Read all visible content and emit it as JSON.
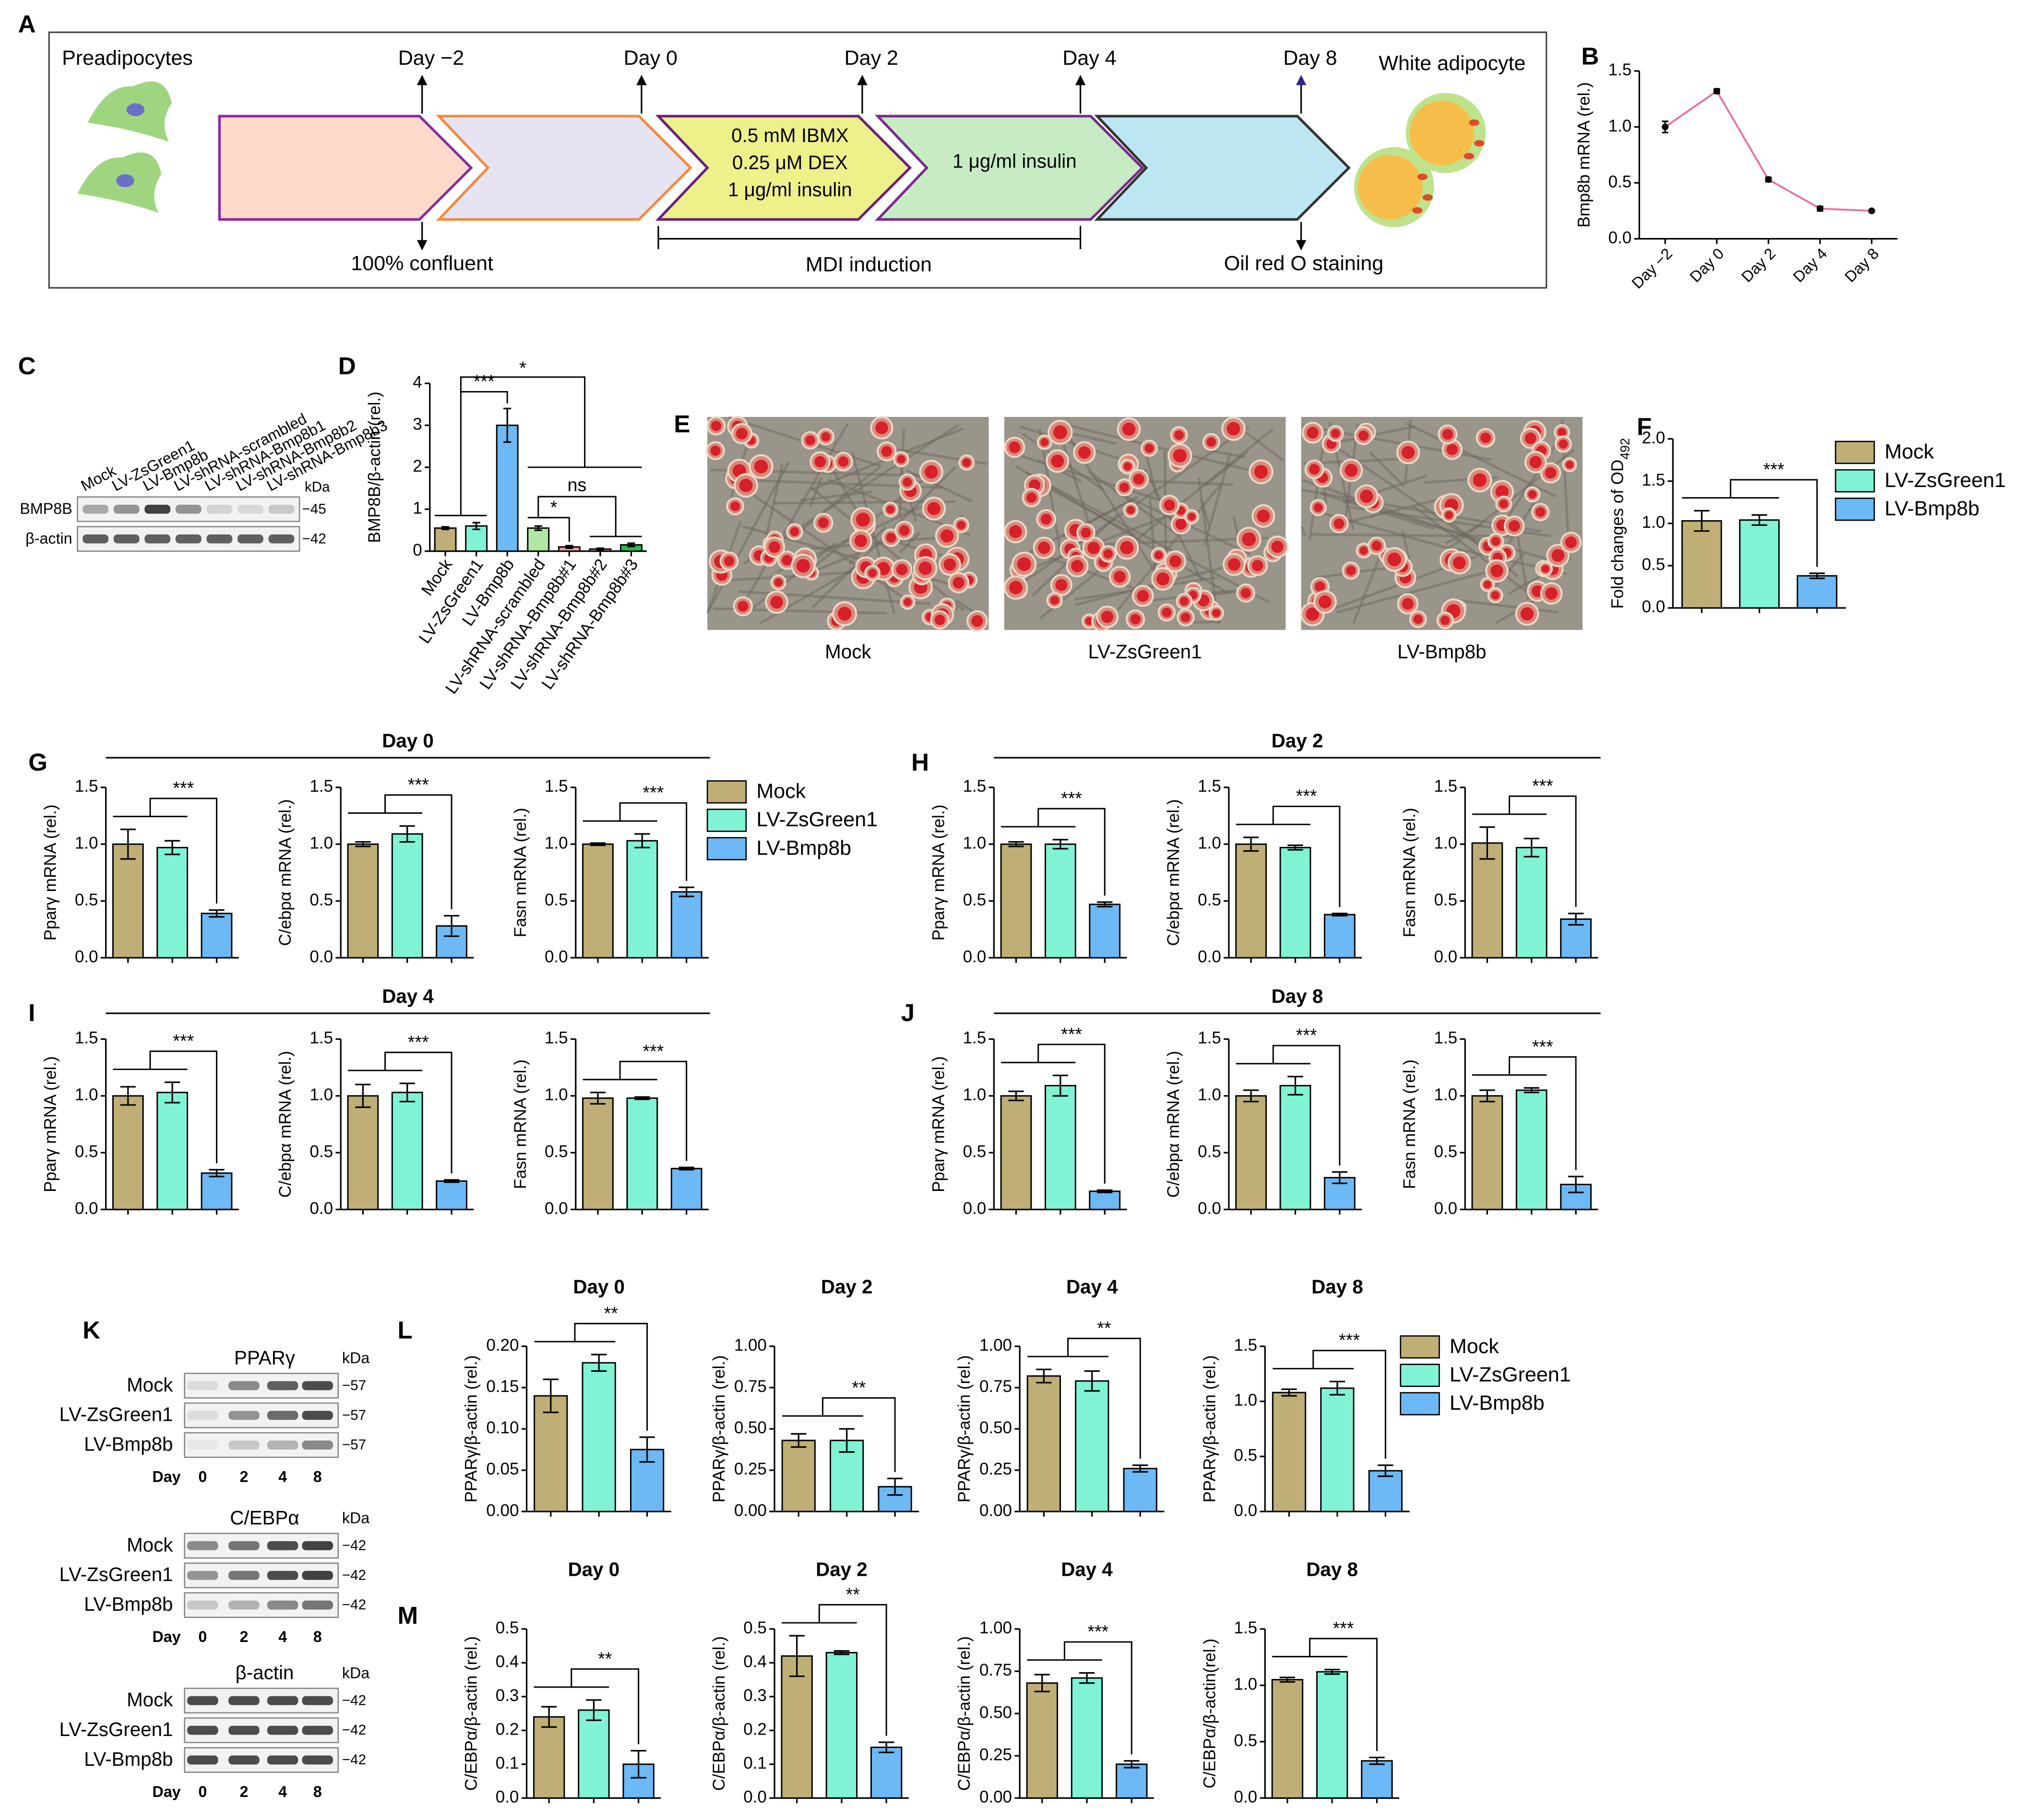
{
  "panel_labels": [
    "A",
    "B",
    "C",
    "D",
    "E",
    "F",
    "G",
    "H",
    "I",
    "J",
    "K",
    "L",
    "M"
  ],
  "groups": {
    "names": [
      "Mock",
      "LV-ZsGreen1",
      "LV-Bmp8b"
    ],
    "colors": [
      "#bfae76",
      "#80f3d5",
      "#6cb9f5"
    ]
  },
  "timeline": {
    "start": "Preadipocytes",
    "days": [
      "Day −2",
      "Day 0",
      "Day 2",
      "Day 4",
      "Day 8"
    ],
    "end": "White adipocyte",
    "below": [
      "100% confluent",
      "MDI induction",
      "Oil red O staining"
    ],
    "box3": [
      "0.5 mM IBMX",
      "0.25 μM DEX",
      "1 μg/ml insulin"
    ],
    "box4": "1 μg/ml insulin"
  },
  "blot_c": {
    "lanes": [
      "Mock",
      "LV-ZsGreen1",
      "LV-Bmp8b",
      "LV-shRNA-scrambled",
      "LV-shRNA-Bmp8b1",
      "LV-shRNA-Bmp8b2",
      "LV-shRNA-Bmp8b3"
    ],
    "rows": [
      "BMP8B",
      "β-actin"
    ],
    "kda": "kDa",
    "markers": [
      "−45",
      "−42"
    ]
  },
  "blot_k": {
    "blots": [
      {
        "title": "PPARγ",
        "marker": "−57"
      },
      {
        "title": "C/EBPα",
        "marker": "−42"
      },
      {
        "title": "β-actin",
        "marker": "−42"
      }
    ],
    "kda": "kDa",
    "day_label": "Day",
    "lanes": [
      "0",
      "2",
      "4",
      "8"
    ]
  },
  "section_titles": [
    "Day 0",
    "Day 2",
    "Day 4",
    "Day 8"
  ],
  "chart_data": [
    {
      "type": "line",
      "ylabel": "Bmp8b mRNA (rel.)",
      "categories": [
        "Day −2",
        "Day 0",
        "Day 2",
        "Day 4",
        "Day 8"
      ],
      "values": [
        1.0,
        1.32,
        0.53,
        0.27,
        0.25
      ],
      "errors": [
        0.05,
        0.02,
        0.02,
        0.02,
        0.01
      ],
      "color": "#f06a9a",
      "ylim": [
        0,
        1.5
      ],
      "yticks": [
        {
          "value": 0,
          "label": "0.0"
        },
        0.5,
        {
          "value": 1,
          "label": "1.0"
        },
        1.5
      ]
    },
    {
      "type": "bar",
      "ylabel": "BMP8B/β-actin (rel.)",
      "categories": [
        "Mock",
        "LV-ZsGreen1",
        "LV-Bmp8b",
        "LV-shRNA-scrambled",
        "LV-shRNA-Bmp8b#1",
        "LV-shRNA-Bmp8b#2",
        "LV-shRNA-Bmp8b#3"
      ],
      "values": [
        0.55,
        0.6,
        3.0,
        0.55,
        0.1,
        0.05,
        0.15
      ],
      "errors": [
        0.03,
        0.08,
        0.4,
        0.05,
        0.03,
        0.02,
        0.04
      ],
      "colors": [
        "#bfae76",
        "#80f3d5",
        "#6cb9f5",
        "#b1e7a5",
        "#f59e9e",
        "#f0a9c8",
        "#2fb84a"
      ],
      "ylim": [
        0,
        4
      ],
      "yticks": [
        0,
        1,
        2,
        3,
        4
      ],
      "annotations": [
        "***",
        "*",
        "ns",
        "*"
      ]
    },
    {
      "type": "bar",
      "ylabel": "Fold changes of OD",
      "ylabel_sub": "492",
      "values": [
        1.03,
        1.04,
        0.38
      ],
      "errors": [
        0.12,
        0.06,
        0.03
      ],
      "ylim": [
        0,
        2
      ],
      "yticks": [
        {
          "value": 0,
          "label": "0.0"
        },
        0.5,
        {
          "value": 1,
          "label": "1.0"
        },
        1.5,
        {
          "value": 2,
          "label": "2.0"
        }
      ],
      "annotation": "***"
    },
    {
      "type": "bar",
      "ylabel": "Pparγ mRNA (rel.)",
      "values": [
        1.0,
        0.97,
        0.39
      ],
      "errors": [
        0.13,
        0.06,
        0.03
      ],
      "ylim": [
        0,
        1.5
      ],
      "yticks": [
        {
          "value": 0,
          "label": "0.0"
        },
        0.5,
        {
          "value": 1,
          "label": "1.0"
        },
        1.5
      ],
      "annotation": "***"
    },
    {
      "type": "bar",
      "ylabel": "C/ebpα mRNA (rel.)",
      "values": [
        1.0,
        1.09,
        0.28
      ],
      "errors": [
        0.02,
        0.07,
        0.09
      ],
      "ylim": [
        0,
        1.5
      ],
      "yticks": [
        {
          "value": 0,
          "label": "0.0"
        },
        0.5,
        {
          "value": 1,
          "label": "1.0"
        },
        1.5
      ],
      "annotation": "***"
    },
    {
      "type": "bar",
      "ylabel": "Fasn mRNA (rel.)",
      "values": [
        1.0,
        1.03,
        0.58
      ],
      "errors": [
        0.01,
        0.06,
        0.04
      ],
      "ylim": [
        0,
        1.5
      ],
      "yticks": [
        {
          "value": 0,
          "label": "0.0"
        },
        0.5,
        {
          "value": 1,
          "label": "1.0"
        },
        1.5
      ],
      "annotation": "***"
    },
    {
      "type": "bar",
      "ylabel": "Pparγ mRNA (rel.)",
      "values": [
        1.0,
        1.0,
        0.47
      ],
      "errors": [
        0.02,
        0.04,
        0.02
      ],
      "ylim": [
        0,
        1.5
      ],
      "yticks": [
        {
          "value": 0,
          "label": "0.0"
        },
        0.5,
        {
          "value": 1,
          "label": "1.0"
        },
        1.5
      ],
      "annotation": "***"
    },
    {
      "type": "bar",
      "ylabel": "C/ebpα mRNA (rel.)",
      "values": [
        1.0,
        0.97,
        0.38
      ],
      "errors": [
        0.06,
        0.02,
        0.01
      ],
      "ylim": [
        0,
        1.5
      ],
      "yticks": [
        {
          "value": 0,
          "label": "0.0"
        },
        0.5,
        {
          "value": 1,
          "label": "1.0"
        },
        1.5
      ],
      "annotation": "***"
    },
    {
      "type": "bar",
      "ylabel": "Fasn mRNA (rel.)",
      "values": [
        1.01,
        0.97,
        0.34
      ],
      "errors": [
        0.14,
        0.08,
        0.05
      ],
      "ylim": [
        0,
        1.5
      ],
      "yticks": [
        {
          "value": 0,
          "label": "0.0"
        },
        0.5,
        {
          "value": 1,
          "label": "1.0"
        },
        1.5
      ],
      "annotation": "***"
    },
    {
      "type": "bar",
      "ylabel": "Pparγ mRNA (rel.)",
      "values": [
        1.0,
        1.03,
        0.32
      ],
      "errors": [
        0.08,
        0.09,
        0.03
      ],
      "ylim": [
        0,
        1.5
      ],
      "yticks": [
        {
          "value": 0,
          "label": "0.0"
        },
        0.5,
        {
          "value": 1,
          "label": "1.0"
        },
        1.5
      ],
      "annotation": "***"
    },
    {
      "type": "bar",
      "ylabel": "C/ebpα mRNA (rel.)",
      "values": [
        1.0,
        1.03,
        0.25
      ],
      "errors": [
        0.1,
        0.08,
        0.01
      ],
      "ylim": [
        0,
        1.5
      ],
      "yticks": [
        {
          "value": 0,
          "label": "0.0"
        },
        0.5,
        {
          "value": 1,
          "label": "1.0"
        },
        1.5
      ],
      "annotation": "***"
    },
    {
      "type": "bar",
      "ylabel": "Fasn mRNA (rel.)",
      "values": [
        0.98,
        0.98,
        0.36
      ],
      "errors": [
        0.05,
        0.01,
        0.01
      ],
      "ylim": [
        0,
        1.5
      ],
      "yticks": [
        {
          "value": 0,
          "label": "0.0"
        },
        0.5,
        {
          "value": 1,
          "label": "1.0"
        },
        1.5
      ],
      "annotation": "***"
    },
    {
      "type": "bar",
      "ylabel": "Pparγ mRNA (rel.)",
      "values": [
        1.0,
        1.09,
        0.16
      ],
      "errors": [
        0.04,
        0.09,
        0.01
      ],
      "ylim": [
        0,
        1.5
      ],
      "yticks": [
        {
          "value": 0,
          "label": "0.0"
        },
        0.5,
        {
          "value": 1,
          "label": "1.0"
        },
        1.5
      ],
      "annotation": "***"
    },
    {
      "type": "bar",
      "ylabel": "C/ebpα mRNA (rel.)",
      "values": [
        1.0,
        1.09,
        0.28
      ],
      "errors": [
        0.05,
        0.08,
        0.05
      ],
      "ylim": [
        0,
        1.5
      ],
      "yticks": [
        {
          "value": 0,
          "label": "0.0"
        },
        0.5,
        {
          "value": 1,
          "label": "1.0"
        },
        1.5
      ],
      "annotation": "***"
    },
    {
      "type": "bar",
      "ylabel": "Fasn mRNA (rel.)",
      "values": [
        1.0,
        1.05,
        0.22
      ],
      "errors": [
        0.05,
        0.02,
        0.07
      ],
      "ylim": [
        0,
        1.5
      ],
      "yticks": [
        {
          "value": 0,
          "label": "0.0"
        },
        0.5,
        {
          "value": 1,
          "label": "1.0"
        },
        1.5
      ],
      "annotation": "***"
    },
    {
      "type": "bar",
      "title": "Day 0",
      "ylabel": "PPARγ/β-actin (rel.)",
      "values": [
        0.14,
        0.18,
        0.075
      ],
      "errors": [
        0.02,
        0.01,
        0.015
      ],
      "ylim": [
        0,
        0.2
      ],
      "yticks": [
        {
          "value": 0,
          "label": "0.00"
        },
        0.05,
        {
          "value": 0.1,
          "label": "0.10"
        },
        0.15,
        {
          "value": 0.2,
          "label": "0.20"
        }
      ],
      "annotation": "**"
    },
    {
      "type": "bar",
      "title": "Day 2",
      "ylabel": "PPARγ/β-actin (rel.)",
      "values": [
        0.43,
        0.43,
        0.15
      ],
      "errors": [
        0.04,
        0.07,
        0.05
      ],
      "ylim": [
        0,
        1
      ],
      "yticks": [
        {
          "value": 0,
          "label": "0.00"
        },
        0.25,
        {
          "value": 0.5,
          "label": "0.50"
        },
        0.75,
        {
          "value": 1,
          "label": "1.00"
        }
      ],
      "annotation": "**"
    },
    {
      "type": "bar",
      "title": "Day 4",
      "ylabel": "PPARγ/β-actin (rel.)",
      "values": [
        0.82,
        0.79,
        0.26
      ],
      "errors": [
        0.04,
        0.06,
        0.02
      ],
      "ylim": [
        0,
        1
      ],
      "yticks": [
        {
          "value": 0,
          "label": "0.00"
        },
        0.25,
        {
          "value": 0.5,
          "label": "0.50"
        },
        0.75,
        {
          "value": 1,
          "label": "1.00"
        }
      ],
      "annotation": "**"
    },
    {
      "type": "bar",
      "title": "Day 8",
      "ylabel": "PPARγ/β-actin (rel.)",
      "values": [
        1.08,
        1.12,
        0.37
      ],
      "errors": [
        0.03,
        0.06,
        0.05
      ],
      "ylim": [
        0,
        1.5
      ],
      "yticks": [
        {
          "value": 0,
          "label": "0.0"
        },
        0.5,
        {
          "value": 1,
          "label": "1.0"
        },
        1.5
      ],
      "annotation": "***"
    },
    {
      "type": "bar",
      "title": "Day 0",
      "ylabel": "C/EBPα/β-actin (rel.)",
      "values": [
        0.24,
        0.26,
        0.1
      ],
      "errors": [
        0.03,
        0.03,
        0.04
      ],
      "ylim": [
        0,
        0.5
      ],
      "yticks": [
        {
          "value": 0,
          "label": "0.0"
        },
        0.1,
        0.2,
        0.3,
        0.4,
        0.5
      ],
      "annotation": "**"
    },
    {
      "type": "bar",
      "title": "Day 2",
      "ylabel": "C/EBPα/β-actin (rel.)",
      "values": [
        0.42,
        0.43,
        0.15
      ],
      "errors": [
        0.06,
        0.005,
        0.015
      ],
      "ylim": [
        0,
        0.5
      ],
      "yticks": [
        {
          "value": 0,
          "label": "0.0"
        },
        0.1,
        0.2,
        0.3,
        0.4,
        0.5
      ],
      "annotation": "**"
    },
    {
      "type": "bar",
      "title": "Day 4",
      "ylabel": "C/EBPα/β-actin (rel.)",
      "values": [
        0.68,
        0.71,
        0.2
      ],
      "errors": [
        0.05,
        0.03,
        0.02
      ],
      "ylim": [
        0,
        1
      ],
      "yticks": [
        {
          "value": 0,
          "label": "0.00"
        },
        0.25,
        {
          "value": 0.5,
          "label": "0.50"
        },
        0.75,
        {
          "value": 1,
          "label": "1.00"
        }
      ],
      "annotation": "***"
    },
    {
      "type": "bar",
      "title": "Day 8",
      "ylabel": "C/EBPα/β-actin(rel.)",
      "values": [
        1.05,
        1.12,
        0.33
      ],
      "errors": [
        0.02,
        0.02,
        0.03
      ],
      "ylim": [
        0,
        1.5
      ],
      "yticks": [
        {
          "value": 0,
          "label": "0.0"
        },
        0.5,
        {
          "value": 1,
          "label": "1.0"
        },
        1.5
      ],
      "annotation": "***"
    }
  ]
}
